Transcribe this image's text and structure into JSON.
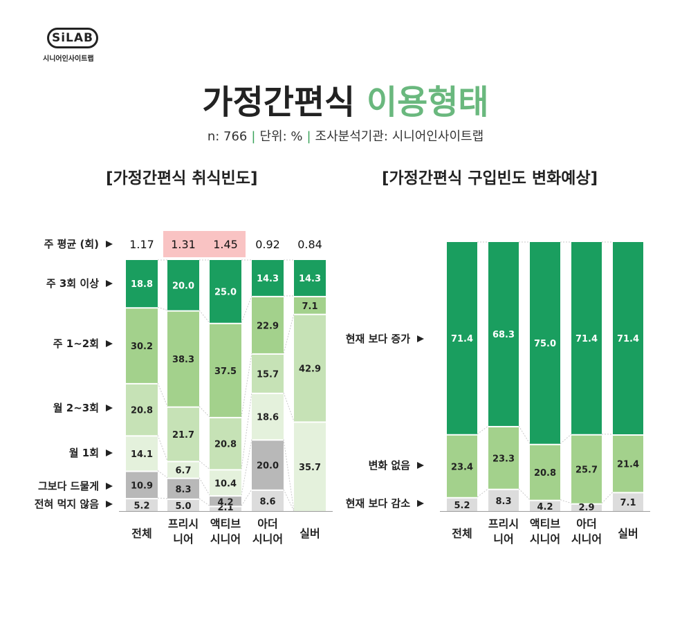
{
  "logo": {
    "badge": "SiLAB",
    "sub": "시니어인사이트랩"
  },
  "title": {
    "main": "가정간편식",
    "accent": "이용형태"
  },
  "meta": {
    "n": "n: 766",
    "unit": "단위: %",
    "source": "조사분석기관: 시니어인사이트랩"
  },
  "colors": {
    "dark_green": "#1a9e5f",
    "mid_green": "#a3d18c",
    "light_green": "#c6e2b6",
    "pale_green": "#e4f1dc",
    "gray": "#b8b8b8",
    "light_gray": "#dcdcdc",
    "highlight": "#f9c3c3",
    "accent": "#6ab87e"
  },
  "chart_data": [
    {
      "type": "bar",
      "stacked": true,
      "title": "[가정간편식 취식빈도]",
      "categories": [
        [
          "전체"
        ],
        [
          "프리시",
          "니어"
        ],
        [
          "액티브",
          "시니어"
        ],
        [
          "아더",
          "시니어"
        ],
        [
          "실버"
        ]
      ],
      "series": [
        {
          "name": "전혀 먹지 않음",
          "color": "#dcdcdc",
          "values": [
            5.2,
            5.0,
            2.1,
            8.6,
            0
          ]
        },
        {
          "name": "그보다 드물게",
          "color": "#b8b8b8",
          "values": [
            10.9,
            8.3,
            4.2,
            20.0,
            0
          ]
        },
        {
          "name": "월 1회",
          "color": "#e4f1dc",
          "values": [
            14.1,
            6.7,
            10.4,
            18.6,
            35.7
          ]
        },
        {
          "name": "월 2~3회",
          "color": "#c6e2b6",
          "values": [
            20.8,
            21.7,
            20.8,
            15.7,
            42.9
          ]
        },
        {
          "name": "주 1~2회",
          "color": "#a3d18c",
          "values": [
            30.2,
            38.3,
            37.5,
            22.9,
            7.1
          ]
        },
        {
          "name": "주 3회 이상",
          "color": "#1a9e5f",
          "values": [
            18.8,
            20.0,
            25.0,
            14.3,
            14.3
          ]
        }
      ],
      "average": {
        "label": "주 평균 (회)",
        "values": [
          "1.17",
          "1.31",
          "1.45",
          "0.92",
          "0.84"
        ],
        "highlighted": [
          1,
          2
        ]
      }
    },
    {
      "type": "bar",
      "stacked": true,
      "title": "[가정간편식 구입빈도 변화예상]",
      "categories": [
        [
          "전체"
        ],
        [
          "프리시",
          "니어"
        ],
        [
          "액티브",
          "시니어"
        ],
        [
          "아더",
          "시니어"
        ],
        [
          "실버"
        ]
      ],
      "series": [
        {
          "name": "현재 보다 감소",
          "color": "#dcdcdc",
          "values": [
            5.2,
            8.3,
            4.2,
            2.9,
            7.1
          ]
        },
        {
          "name": "변화 없음",
          "color": "#a3d18c",
          "values": [
            23.4,
            23.3,
            20.8,
            25.7,
            21.4
          ]
        },
        {
          "name": "현재 보다 증가",
          "color": "#1a9e5f",
          "values": [
            71.4,
            68.3,
            75.0,
            71.4,
            71.4
          ]
        }
      ]
    }
  ]
}
